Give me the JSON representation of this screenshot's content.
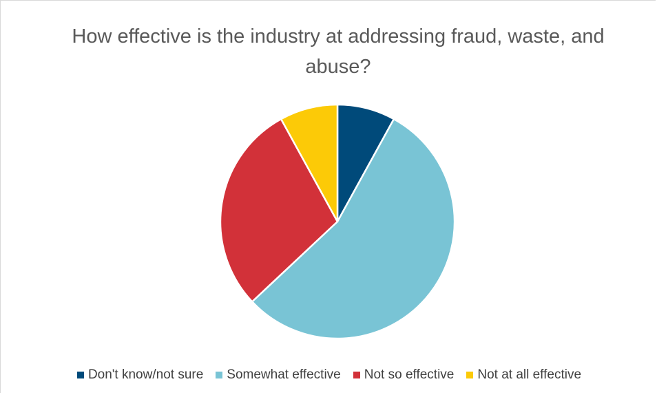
{
  "chart_data": {
    "type": "pie",
    "title": "How effective is the industry at addressing fraud, waste, and abuse?",
    "categories": [
      "Don't know/not sure",
      "Somewhat effective",
      "Not so effective",
      "Not at all effective"
    ],
    "values": [
      8,
      55,
      29,
      8
    ],
    "colors": [
      "#004a7a",
      "#79c4d5",
      "#d23139",
      "#fcca07"
    ],
    "start_angle_deg": 0,
    "direction": "clockwise",
    "legend": "bottom"
  }
}
